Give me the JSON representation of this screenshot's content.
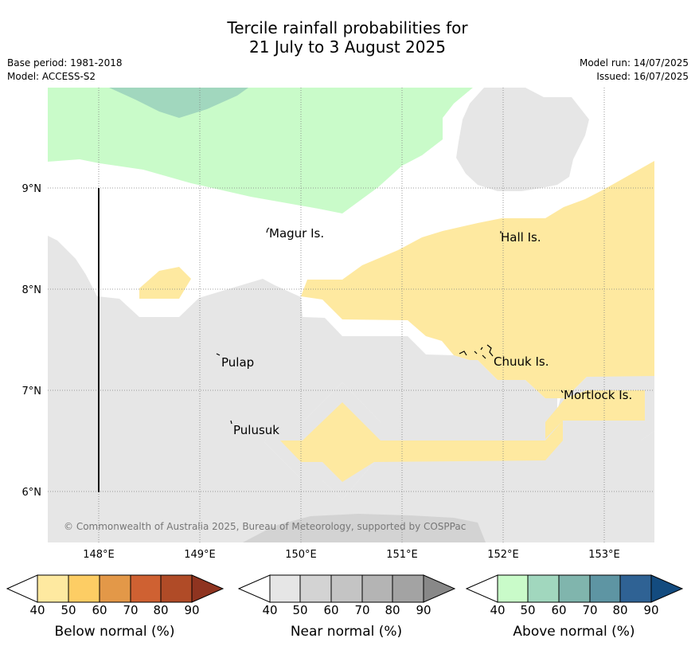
{
  "title": {
    "line1": "Tercile rainfall probabilities for",
    "line2": "21 July to 3 August 2025"
  },
  "meta": {
    "base_period": "Base period: 1981-2018",
    "model": "Model: ACCESS-S2",
    "model_run": "Model run: 14/07/2025",
    "issued": "Issued: 16/07/2025"
  },
  "map": {
    "lat_labels": [
      "9°N",
      "8°N",
      "7°N",
      "6°N"
    ],
    "lon_labels": [
      "148°E",
      "149°E",
      "150°E",
      "151°E",
      "152°E",
      "153°E"
    ],
    "places": [
      "Magur Is.",
      "Hall Is.",
      "Pulap",
      "Chuuk Is.",
      "Mortlock Is.",
      "Pulusuk"
    ],
    "copyright": "© Commonwealth of Australia 2025, Bureau of Meteorology, supported by COSPPac",
    "colors": {
      "below_40": "#fee9a0",
      "near_40": "#e6e6e6",
      "near_50": "#d3d3d3",
      "above_40": "#c9fbc9",
      "above_50": "#a1d7be"
    }
  },
  "legends": [
    {
      "label": "Below normal (%)",
      "ticks": [
        "40",
        "50",
        "60",
        "70",
        "80",
        "90"
      ],
      "colors": [
        "#fee9a0",
        "#fdcd64",
        "#e39848",
        "#cf6132",
        "#b04b27",
        "#8f3420"
      ]
    },
    {
      "label": "Near normal (%)",
      "ticks": [
        "40",
        "50",
        "60",
        "70",
        "80",
        "90"
      ],
      "colors": [
        "#e6e6e6",
        "#d3d3d3",
        "#c4c4c4",
        "#b4b4b4",
        "#a3a3a3",
        "#888888"
      ]
    },
    {
      "label": "Above normal (%)",
      "ticks": [
        "40",
        "50",
        "60",
        "70",
        "80",
        "90"
      ],
      "colors": [
        "#c9fbc9",
        "#a1d7be",
        "#80b5ad",
        "#5e95a3",
        "#2f6294",
        "#134b7f"
      ]
    }
  ]
}
